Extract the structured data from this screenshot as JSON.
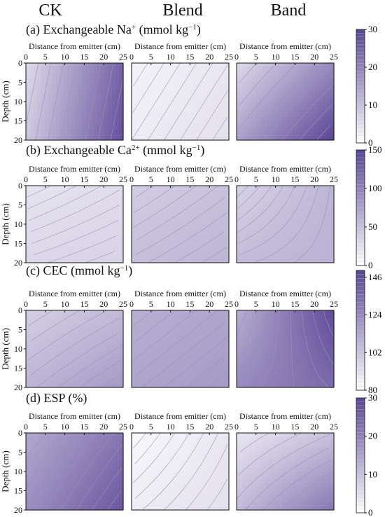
{
  "columns": [
    "CK",
    "Blend",
    "Band"
  ],
  "chart_data": [
    {
      "type": "heatmap",
      "title": "(a) Exchangeable Na",
      "title_sup": "+",
      "title_unit": " (mmol kg",
      "title_unit_sup": "−1",
      "title_close": ")",
      "xlabel": "Distance from emitter (cm)",
      "ylabel": "Depth (cm)",
      "xlim": [
        0,
        25
      ],
      "ylim": [
        0,
        20
      ],
      "x_ticks": [
        "0",
        "5",
        "10",
        "15",
        "20",
        "25"
      ],
      "y_ticks": [
        "0",
        "5",
        "10",
        "15",
        "20"
      ],
      "colorbar": {
        "ticks": [
          "0",
          "10",
          "20",
          "30"
        ],
        "range": [
          0,
          30
        ]
      },
      "panels": [
        {
          "name": "CK",
          "corners": {
            "top_left": 6,
            "top_right": 25,
            "bottom_left": 9,
            "bottom_right": 28
          }
        },
        {
          "name": "Blend",
          "corners": {
            "top_left": 2,
            "top_right": 4,
            "bottom_left": 3,
            "bottom_right": 5
          }
        },
        {
          "name": "Band",
          "corners": {
            "top_left": 6,
            "top_right": 19,
            "bottom_left": 15,
            "bottom_right": 30
          }
        }
      ]
    },
    {
      "type": "heatmap",
      "title": "(b) Exchangeable Ca",
      "title_sup": "2+",
      "title_unit": " (mmol kg",
      "title_unit_sup": "−1",
      "title_close": ")",
      "xlabel": "Distance from emitter (cm)",
      "ylabel": "Depth (cm)",
      "xlim": [
        0,
        25
      ],
      "ylim": [
        0,
        20
      ],
      "x_ticks": [
        "0",
        "5",
        "10",
        "15",
        "20",
        "25"
      ],
      "y_ticks": [
        "0",
        "5",
        "10",
        "15",
        "20"
      ],
      "colorbar": {
        "ticks": [
          "0",
          "50",
          "100",
          "150"
        ],
        "range": [
          0,
          150
        ]
      },
      "panels": [
        {
          "name": "CK",
          "corners": {
            "top_left": 22,
            "top_right": 28,
            "bottom_left": 32,
            "bottom_right": 36
          }
        },
        {
          "name": "Blend",
          "corners": {
            "top_left": 40,
            "top_right": 50,
            "bottom_left": 52,
            "bottom_right": 60
          }
        },
        {
          "name": "Band",
          "corners": {
            "top_left": 36,
            "top_right": 60,
            "bottom_left": 55,
            "bottom_right": 62
          }
        }
      ]
    },
    {
      "type": "heatmap",
      "title": "(c) CEC",
      "title_sup": "",
      "title_unit": " (mmol kg",
      "title_unit_sup": "−1",
      "title_close": ")",
      "xlabel": "Distance from emitter (cm)",
      "ylabel": "Depth (cm)",
      "xlim": [
        0,
        25
      ],
      "ylim": [
        0,
        20
      ],
      "x_ticks": [
        "0",
        "5",
        "10",
        "15",
        "20",
        "25"
      ],
      "y_ticks": [
        "0",
        "5",
        "10",
        "15",
        "20"
      ],
      "colorbar": {
        "ticks": [
          "80",
          "102",
          "124",
          "146"
        ],
        "range": [
          80,
          150
        ]
      },
      "panels": [
        {
          "name": "CK",
          "corners": {
            "top_left": 98,
            "top_right": 106,
            "bottom_left": 108,
            "bottom_right": 118
          }
        },
        {
          "name": "Blend",
          "corners": {
            "top_left": 110,
            "top_right": 114,
            "bottom_left": 114,
            "bottom_right": 118
          }
        },
        {
          "name": "Band",
          "corners": {
            "top_left": 110,
            "top_right": 148,
            "bottom_left": 124,
            "bottom_right": 136
          }
        }
      ]
    },
    {
      "type": "heatmap",
      "title": "(d) ESP (%)",
      "title_sup": "",
      "title_unit": "",
      "title_unit_sup": "",
      "title_close": "",
      "xlabel": "Distance from emitter (cm)",
      "ylabel": "Depth (cm)",
      "xlim": [
        0,
        25
      ],
      "ylim": [
        0,
        20
      ],
      "x_ticks": [
        "0",
        "5",
        "10",
        "15",
        "20",
        "25"
      ],
      "y_ticks": [
        "0",
        "5",
        "10",
        "15",
        "20"
      ],
      "colorbar": {
        "ticks": [
          "0",
          "10",
          "20",
          "30"
        ],
        "range": [
          0,
          30
        ]
      },
      "panels": [
        {
          "name": "CK",
          "corners": {
            "top_left": 14,
            "top_right": 22,
            "bottom_left": 18,
            "bottom_right": 27
          }
        },
        {
          "name": "Blend",
          "corners": {
            "top_left": 1,
            "top_right": 4,
            "bottom_left": 3,
            "bottom_right": 5
          }
        },
        {
          "name": "Band",
          "corners": {
            "top_left": 4,
            "top_right": 10,
            "bottom_left": 11,
            "bottom_right": 22
          }
        }
      ]
    }
  ],
  "colors": {
    "low": "#ffffff",
    "high": "#5a4596",
    "axis": "#111111",
    "contour": "#9b93b8"
  }
}
